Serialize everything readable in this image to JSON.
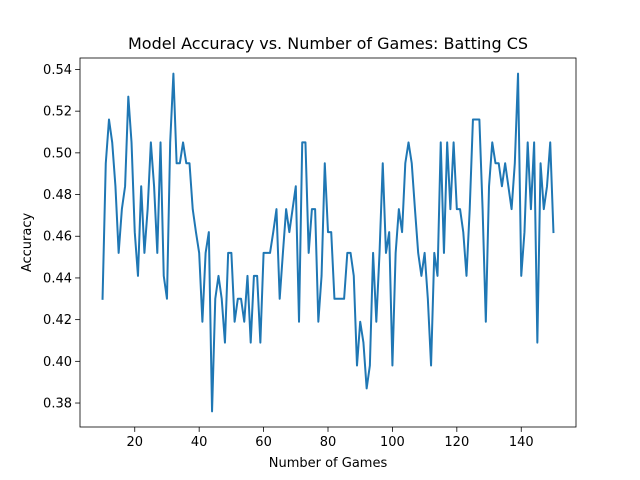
{
  "chart_data": {
    "type": "line",
    "title": "Model Accuracy vs. Number of Games: Batting CS",
    "xlabel": "Number of Games",
    "ylabel": "Accuracy",
    "xlim": [
      3,
      157
    ],
    "ylim": [
      0.3685,
      0.5455
    ],
    "xticks": [
      20,
      40,
      60,
      80,
      100,
      120,
      140
    ],
    "yticks": [
      0.38,
      0.4,
      0.42,
      0.44,
      0.46,
      0.48,
      0.5,
      0.52,
      0.54
    ],
    "xtick_labels": [
      "20",
      "40",
      "60",
      "80",
      "100",
      "120",
      "140"
    ],
    "ytick_labels": [
      "0.38",
      "0.40",
      "0.42",
      "0.44",
      "0.46",
      "0.48",
      "0.50",
      "0.52",
      "0.54"
    ],
    "grid": false,
    "legend": "none",
    "series": [
      {
        "color": "#1f77b4",
        "x": [
          10,
          11,
          12,
          13,
          14,
          15,
          16,
          17,
          18,
          19,
          20,
          21,
          22,
          23,
          24,
          25,
          26,
          27,
          28,
          29,
          30,
          31,
          32,
          33,
          34,
          35,
          36,
          37,
          38,
          39,
          40,
          41,
          42,
          43,
          44,
          45,
          46,
          47,
          48,
          49,
          50,
          51,
          52,
          53,
          54,
          55,
          56,
          57,
          58,
          59,
          60,
          61,
          62,
          63,
          64,
          65,
          66,
          67,
          68,
          69,
          70,
          71,
          72,
          73,
          74,
          75,
          76,
          77,
          78,
          79,
          80,
          81,
          82,
          83,
          84,
          85,
          86,
          87,
          88,
          89,
          90,
          91,
          92,
          93,
          94,
          95,
          96,
          97,
          98,
          99,
          100,
          101,
          102,
          103,
          104,
          105,
          106,
          107,
          108,
          109,
          110,
          111,
          112,
          113,
          114,
          115,
          116,
          117,
          118,
          119,
          120,
          121,
          122,
          123,
          124,
          125,
          126,
          127,
          128,
          129,
          130,
          131,
          132,
          133,
          134,
          135,
          136,
          137,
          138,
          139,
          140,
          141,
          142,
          143,
          144,
          145,
          146,
          147,
          148,
          149,
          150
        ],
        "y": [
          0.43,
          0.495,
          0.516,
          0.505,
          0.484,
          0.452,
          0.473,
          0.484,
          0.527,
          0.505,
          0.462,
          0.441,
          0.484,
          0.452,
          0.473,
          0.505,
          0.484,
          0.452,
          0.505,
          0.441,
          0.43,
          0.505,
          0.538,
          0.495,
          0.495,
          0.505,
          0.495,
          0.495,
          0.473,
          0.462,
          0.452,
          0.419,
          0.452,
          0.462,
          0.376,
          0.43,
          0.441,
          0.43,
          0.409,
          0.452,
          0.452,
          0.419,
          0.43,
          0.43,
          0.419,
          0.441,
          0.409,
          0.441,
          0.441,
          0.409,
          0.452,
          0.452,
          0.452,
          0.462,
          0.473,
          0.43,
          0.452,
          0.473,
          0.462,
          0.473,
          0.484,
          0.419,
          0.505,
          0.505,
          0.452,
          0.473,
          0.473,
          0.419,
          0.441,
          0.495,
          0.462,
          0.462,
          0.43,
          0.43,
          0.43,
          0.43,
          0.452,
          0.452,
          0.441,
          0.398,
          0.419,
          0.409,
          0.387,
          0.398,
          0.452,
          0.419,
          0.452,
          0.495,
          0.452,
          0.462,
          0.398,
          0.452,
          0.473,
          0.462,
          0.495,
          0.505,
          0.495,
          0.473,
          0.452,
          0.441,
          0.452,
          0.43,
          0.398,
          0.452,
          0.441,
          0.505,
          0.452,
          0.505,
          0.473,
          0.505,
          0.473,
          0.473,
          0.462,
          0.441,
          0.473,
          0.516,
          0.516,
          0.516,
          0.473,
          0.419,
          0.484,
          0.505,
          0.495,
          0.495,
          0.484,
          0.495,
          0.484,
          0.473,
          0.495,
          0.538,
          0.441,
          0.462,
          0.505,
          0.473,
          0.505,
          0.409,
          0.495,
          0.473,
          0.484,
          0.505,
          0.462
        ]
      }
    ]
  }
}
